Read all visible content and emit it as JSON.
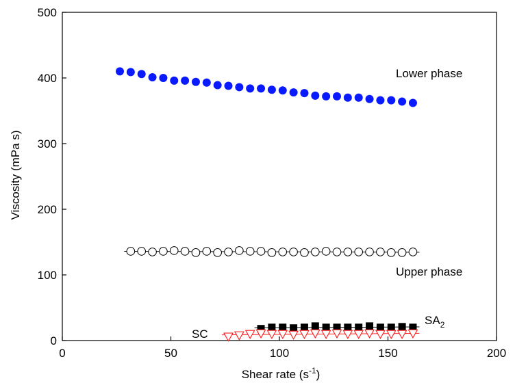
{
  "chart_data": {
    "type": "scatter",
    "xlabel_main": "Shear rate (s",
    "xlabel_sup": "-1",
    "xlabel_end": ")",
    "ylabel": "Viscosity (mPa s)",
    "xlim": [
      0,
      200
    ],
    "ylim": [
      0,
      500
    ],
    "xticks": [
      "0",
      "50",
      "100",
      "150",
      "200"
    ],
    "yticks": [
      "0",
      "100",
      "200",
      "300",
      "400",
      "500"
    ],
    "grid": false,
    "annotations": {
      "lower": "Lower phase",
      "upper": "Upper phase",
      "sa_main": "SA",
      "sa_sub": "2",
      "sc": "SC"
    },
    "series": [
      {
        "key": "lower",
        "marker": "filled-circle",
        "color": "#0a1aff",
        "x": [
          26.5,
          31.5,
          36.5,
          41.5,
          46.5,
          51.5,
          56.5,
          61.5,
          66.5,
          71.5,
          76.5,
          81.5,
          86.5,
          91.5,
          96.5,
          101.5,
          106.5,
          111.5,
          116.5,
          121.5,
          126.5,
          131.5,
          136.5,
          141.5,
          146.5,
          151.5,
          156.5,
          161.5
        ],
        "y": [
          410,
          409,
          406,
          401,
          400,
          396,
          396,
          394,
          393,
          389,
          388,
          386,
          384,
          384,
          382,
          381,
          378,
          377,
          373,
          372,
          372,
          370,
          370,
          368,
          366,
          366,
          364,
          362
        ]
      },
      {
        "key": "upper",
        "marker": "open-circle",
        "color": "#000000",
        "x": [
          31.5,
          36.5,
          41.5,
          46.5,
          51.5,
          56.5,
          61.5,
          66.5,
          71.5,
          76.5,
          81.5,
          86.5,
          91.5,
          96.5,
          101.5,
          106.5,
          111.5,
          116.5,
          121.5,
          126.5,
          131.5,
          136.5,
          141.5,
          146.5,
          151.5,
          156.5,
          161.5
        ],
        "y": [
          136,
          136,
          135,
          136,
          137,
          136,
          134,
          136,
          134,
          135,
          137,
          136,
          136,
          134,
          135,
          135,
          134,
          135,
          136,
          135,
          135,
          135,
          135,
          135,
          134,
          134,
          135
        ]
      },
      {
        "key": "sa2",
        "marker": "filled-square",
        "color": "#000000",
        "x": [
          91.5,
          96.5,
          101.5,
          106.5,
          111.5,
          116.5,
          121.5,
          126.5,
          131.5,
          136.5,
          141.5,
          146.5,
          151.5,
          156.5,
          161.5
        ],
        "y": [
          18,
          20,
          20,
          19,
          20,
          22,
          20,
          20,
          20,
          20,
          22,
          20,
          20,
          21,
          20
        ]
      },
      {
        "key": "sc",
        "marker": "open-triangle-down",
        "color": "#ff1a1a",
        "x": [
          76.5,
          81.5,
          86.5,
          91.5,
          96.5,
          101.5,
          106.5,
          111.5,
          116.5,
          121.5,
          126.5,
          131.5,
          136.5,
          141.5,
          146.5,
          151.5,
          156.5,
          161.5
        ],
        "y": [
          6,
          8,
          10,
          11,
          10,
          10,
          9,
          10,
          11,
          10,
          11,
          10,
          10,
          11,
          10,
          10,
          10,
          11
        ]
      }
    ]
  }
}
